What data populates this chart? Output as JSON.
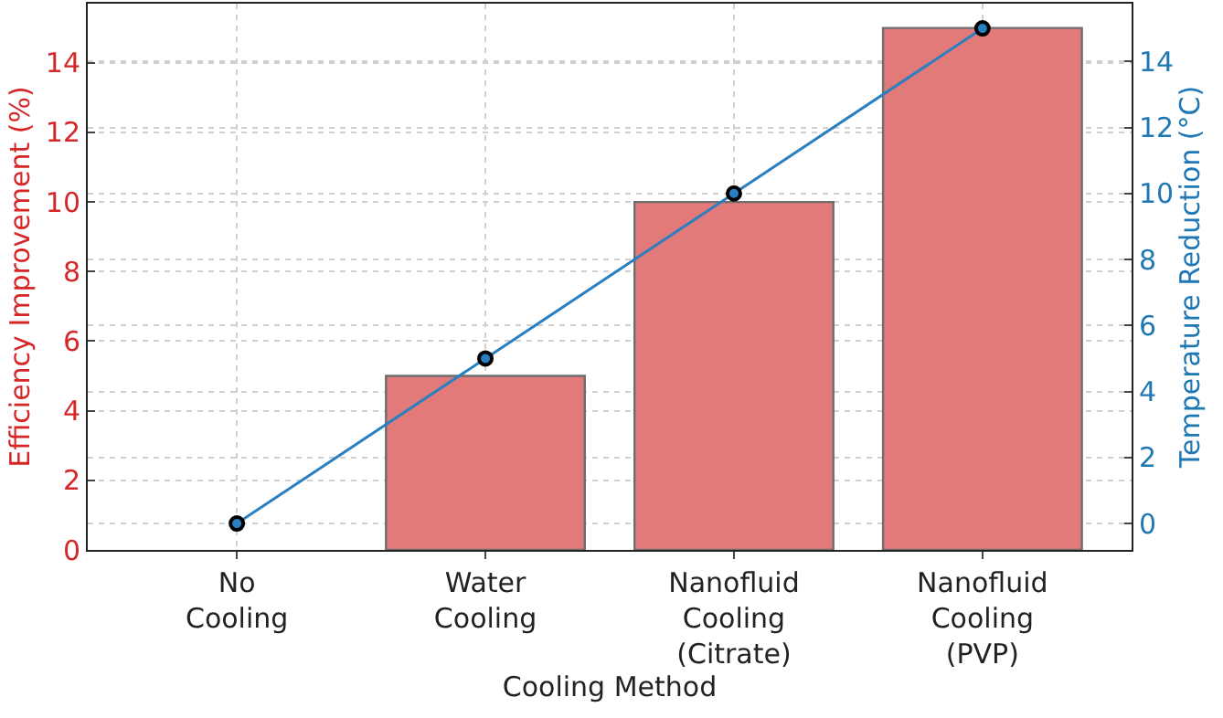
{
  "chart_data": {
    "type": "bar",
    "xlabel": "Cooling Method",
    "ylabel": "Efficiency Improvement (%)",
    "y2label": "Temperature Reduction (°C)",
    "categories": [
      "No\nCooling",
      "Water\nCooling",
      "Nanofluid\nCooling\n(Citrate)",
      "Nanofluid\nCooling\n(PVP)"
    ],
    "series": [
      {
        "color": "#e27a7a",
        "values": [
          0,
          5,
          10,
          15
        ]
      },
      {
        "type": "line",
        "axis": "y2",
        "color": "#2a7fc0",
        "marker": "circle",
        "values": [
          0,
          5,
          10,
          15
        ]
      }
    ],
    "ylim": [
      0,
      15.7
    ],
    "yticks": [
      0,
      2,
      4,
      6,
      8,
      10,
      12,
      14
    ],
    "y2lim": [
      -0.8,
      15.75
    ],
    "y2ticks": [
      0,
      2,
      4,
      6,
      8,
      10,
      12,
      14
    ],
    "grid": true
  }
}
